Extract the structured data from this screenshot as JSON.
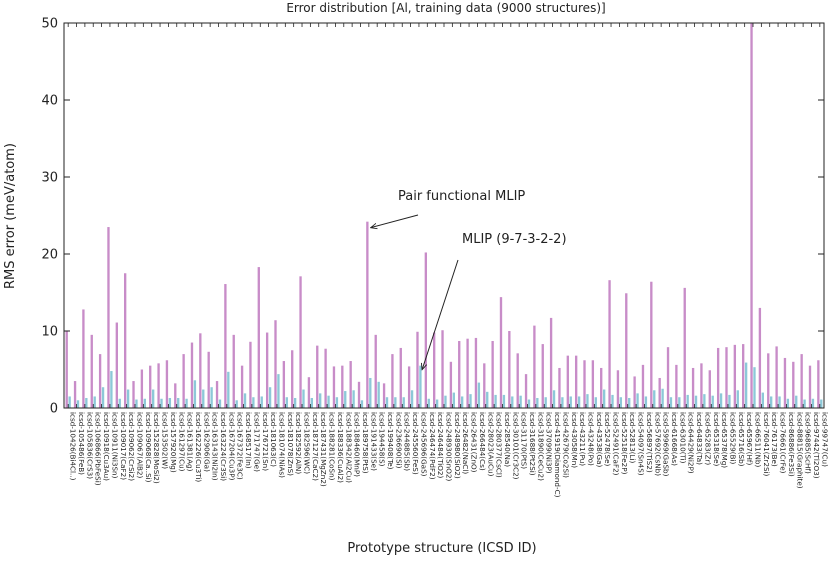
{
  "chart_data": {
    "type": "bar",
    "title": "Error distribution [Al, training data (9000 structures)]",
    "xlabel": "Prototype structure (ICSD ID)",
    "ylabel": "RMS error (meV/atom)",
    "ylim": [
      0,
      50
    ],
    "yticks": [
      0,
      10,
      20,
      30,
      40,
      50
    ],
    "grid": false,
    "colors": {
      "pair": "#c88cc8",
      "mlip": "#8cc8d8"
    },
    "categories": [
      "icsd-10426(Bi4Cl..)",
      "icsd-105486(FeB)",
      "icsd-105836(CrS3)",
      "icsd-106866(PbFeSi)",
      "icsd-10918(Cu3Au)",
      "icsd-10911(Ni3Sn)",
      "icsd-109017(CaF2)",
      "icsd-109062(CrSi2)",
      "icsd-109067(AlB2)",
      "icsd-109068(Ca..Si)",
      "icsd-152828(MoSi2)",
      "icsd-153502(W)",
      "icsd-157920(Mg)",
      "icsd-161297(Cu)",
      "icsd-161381(Ag)",
      "icsd-162226(Cu3Ti)",
      "icsd-162906(Ga)",
      "icsd-163143(Ni2In)",
      "icsd-163224(Cr3Si)",
      "icsd-167204(Cu3P)",
      "icsd-167372(Fe3C)",
      "icsd-168517(In)",
      "icsd-171747(Ge)",
      "icsd-176721(Sn)",
      "icsd-181063(C)",
      "icsd-181074(NiAs)",
      "icsd-181078(ZnS)",
      "icsd-182592(AlN)",
      "icsd-182596(WC)",
      "icsd-187127(CaC2)",
      "icsd-187431(MgZn2)",
      "icsd-188281(CoSn)",
      "icsd-188336(CuAl2)",
      "icsd-188342(Al2Cu)",
      "icsd-188460(MnP)",
      "icsd-189758(PtS)",
      "icsd-191433(Se)",
      "icsd-194458(S)",
      "icsd-199408(Te)",
      "icsd-236690(Si)",
      "icsd-244885(Sb)",
      "icsd-245560(FeS)",
      "icsd-245696(GaS)",
      "icsd-246474(PdF2)",
      "icsd-246484(TiO2)",
      "icsd-248930(SnO2)",
      "icsd-248980(SiO2)",
      "icsd-26482(NaCl)",
      "icsd-26431(ZnO)",
      "icsd-266484(Cs)",
      "icsd-28023(AuCu)",
      "icsd-280377(CsCl)",
      "icsd-28540(Na)",
      "icsd-30101(Cr3C2)",
      "icsd-31170(PtS)",
      "icsd-31688(Pt2Si)",
      "icsd-31890(CeCu2)",
      "icsd-37099(Ni3P)",
      "icsd-41919(Diamond-C)",
      "icsd-42679(Co2Si)",
      "icsd-43058(Mn)",
      "icsd-43211(Pu)",
      "icsd-43248(Po)",
      "icsd-43538(Ga)",
      "icsd-52478(Se)",
      "icsd-52491(CaF2)",
      "icsd-52518(Fe2P)",
      "icsd-52813(Li)",
      "icsd-54097(Sn4S)",
      "icsd-56897(TiS2)",
      "icsd-57692(CsNb)",
      "icsd-59969(GaSb)",
      "icsd-61668(As)",
      "icsd-63010(Ti)",
      "icsd-64429(Ni2P)",
      "icsd-64833(Ta)",
      "icsd-65283(Zr)",
      "icsd-65318(Se)",
      "icsd-65378(Mg)",
      "icsd-65529(Bi)",
      "icsd-65716(Sb)",
      "icsd-65967(Hf)",
      "icsd-66511(Nb)",
      "icsd-76041(Zr2Si)",
      "icsd-76173(Be)",
      "icsd-76661(CrFe)",
      "icsd-86886(Fe3Si)",
      "icsd-88815(Graphite)",
      "icsd-96885(ScHf)",
      "icsd-97442(Tl2O3)",
      "icsd-99747(Cu)"
    ],
    "series": [
      {
        "name": "Pair functional MLIP",
        "values": [
          10.0,
          3.5,
          12.8,
          9.5,
          7.0,
          23.5,
          11.1,
          17.5,
          3.5,
          5.0,
          5.5,
          5.8,
          6.2,
          3.2,
          7.0,
          8.5,
          9.7,
          7.3,
          3.5,
          16.1,
          9.5,
          5.5,
          8.6,
          18.3,
          9.8,
          11.4,
          6.1,
          7.5,
          17.1,
          4.0,
          8.1,
          7.7,
          5.4,
          5.5,
          6.1,
          3.4,
          24.2,
          9.5,
          3.2,
          7.0,
          7.8,
          5.4,
          9.9,
          20.2,
          9.8,
          10.1,
          6.0,
          8.7,
          9.0,
          9.1,
          5.8,
          8.7,
          14.4,
          10.0,
          7.1,
          4.4,
          10.7,
          8.3,
          11.7,
          5.2,
          6.8,
          6.8,
          6.2,
          6.2,
          5.2,
          16.6,
          4.9,
          14.9,
          4.1,
          5.6,
          16.4,
          3.9,
          7.9,
          5.6,
          15.6,
          5.2,
          5.8,
          4.9,
          7.8,
          7.9,
          8.2,
          8.3,
          50.0,
          13.0,
          7.1,
          8.0,
          6.5,
          6.0,
          7.0,
          5.5,
          6.2
        ],
        "color": "#c88cc8"
      },
      {
        "name": "MLIP (9-7-3-2-2)",
        "values": [
          1.5,
          1.0,
          1.3,
          1.5,
          2.7,
          4.8,
          1.2,
          2.4,
          1.1,
          1.2,
          2.4,
          1.2,
          1.3,
          1.3,
          1.2,
          3.6,
          2.4,
          2.7,
          1.1,
          4.7,
          1.0,
          1.9,
          1.4,
          1.5,
          2.7,
          4.4,
          1.4,
          1.3,
          2.4,
          1.3,
          1.9,
          1.6,
          1.4,
          2.2,
          2.3,
          1.0,
          3.9,
          3.4,
          1.4,
          1.4,
          1.4,
          2.3,
          5.5,
          1.2,
          1.1,
          1.6,
          2.0,
          1.5,
          1.8,
          3.3,
          2.1,
          1.7,
          1.7,
          1.5,
          1.6,
          1.1,
          1.3,
          1.4,
          2.3,
          1.4,
          1.5,
          1.5,
          1.8,
          1.4,
          2.4,
          1.7,
          1.4,
          1.3,
          1.9,
          1.5,
          2.3,
          2.5,
          1.4,
          1.4,
          1.7,
          1.6,
          1.8,
          1.6,
          1.9,
          1.7,
          2.3,
          5.9,
          5.3,
          2.0,
          1.5,
          1.5,
          1.2,
          1.6,
          1.1,
          1.2,
          1.1
        ],
        "color": "#8cc8d8"
      }
    ],
    "annotations": [
      {
        "text": "Pair functional MLIP",
        "series": 0,
        "category_index": 36
      },
      {
        "text": "MLIP (9-7-3-2-2)",
        "series": 1,
        "category_index": 42
      }
    ]
  }
}
